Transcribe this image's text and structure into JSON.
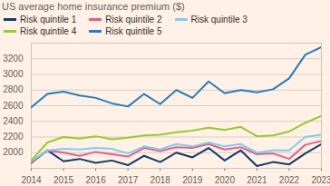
{
  "chart_data": {
    "type": "line",
    "title": "US average home insurance premium ($)",
    "x": [
      2014,
      2014.5,
      2015,
      2015.5,
      2016,
      2016.5,
      2017,
      2017.5,
      2018,
      2018.5,
      2019,
      2019.5,
      2020,
      2020.5,
      2021,
      2021.5,
      2022,
      2022.5,
      2023
    ],
    "series": [
      {
        "name": "Risk quintile 1",
        "color": "#0d3c6e",
        "values": [
          1870,
          2030,
          1890,
          1920,
          1870,
          1900,
          1840,
          1960,
          1880,
          2000,
          1940,
          2060,
          1900,
          2030,
          1830,
          1880,
          1850,
          1990,
          2110
        ]
      },
      {
        "name": "Risk quintile 2",
        "color": "#e95d8c",
        "values": [
          1880,
          2030,
          2000,
          1960,
          2010,
          1980,
          1950,
          2060,
          2020,
          2070,
          2060,
          2110,
          2040,
          2070,
          1980,
          1990,
          1920,
          2100,
          2150
        ]
      },
      {
        "name": "Risk quintile 3",
        "color": "#7ad0f0",
        "values": [
          1890,
          2030,
          2050,
          2040,
          2060,
          2050,
          1990,
          2080,
          2040,
          2110,
          2080,
          2130,
          2080,
          2110,
          2000,
          2030,
          2030,
          2200,
          2230
        ]
      },
      {
        "name": "Risk quintile 4",
        "color": "#96cc28",
        "values": [
          1900,
          2130,
          2200,
          2180,
          2210,
          2170,
          2190,
          2220,
          2230,
          2260,
          2280,
          2320,
          2290,
          2330,
          2210,
          2220,
          2270,
          2380,
          2470
        ]
      },
      {
        "name": "Risk quintile 5",
        "color": "#1f7fc4",
        "values": [
          2580,
          2750,
          2780,
          2730,
          2700,
          2630,
          2590,
          2750,
          2620,
          2800,
          2700,
          2910,
          2760,
          2800,
          2770,
          2810,
          2950,
          3250,
          3350
        ]
      }
    ],
    "xlim": [
      2014,
      2023
    ],
    "xticks": [
      2014,
      2015,
      2016,
      2017,
      2018,
      2019,
      2020,
      2021,
      2022,
      2023
    ],
    "ylim": [
      1800,
      3400
    ],
    "yticks": [
      2000,
      2200,
      2400,
      2600,
      2800,
      3000,
      3200
    ],
    "grid": true,
    "legend": "top"
  }
}
